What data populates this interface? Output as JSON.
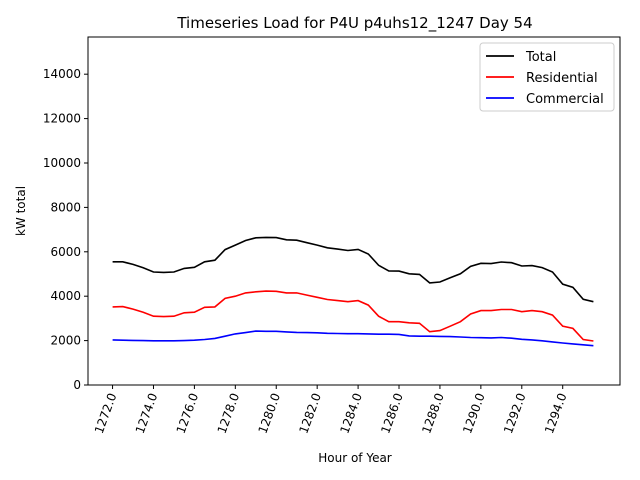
{
  "chart_data": {
    "type": "line",
    "title": "Timeseries Load for P4U p4uhs12_1247  Day 54",
    "xlabel": "Hour of Year",
    "ylabel": "kW total",
    "ylim": [
      0,
      15675
    ],
    "xlim": [
      1270.8,
      1296.8
    ],
    "grid": false,
    "legend_position": "top-right",
    "xticks": [
      "1272.0",
      "1274.0",
      "1276.0",
      "1278.0",
      "1280.0",
      "1282.0",
      "1284.0",
      "1286.0",
      "1288.0",
      "1290.0",
      "1292.0",
      "1294.0"
    ],
    "xtick_values": [
      1272,
      1274,
      1276,
      1278,
      1280,
      1282,
      1284,
      1286,
      1288,
      1290,
      1292,
      1294
    ],
    "yticks": [
      "0",
      "2000",
      "4000",
      "6000",
      "8000",
      "10000",
      "12000",
      "14000"
    ],
    "ytick_values": [
      0,
      2000,
      4000,
      6000,
      8000,
      10000,
      12000,
      14000
    ],
    "x_start": 1272,
    "x_step": 0.5,
    "series": [
      {
        "name": "Total",
        "color": "#000000",
        "values": [
          5550,
          5550,
          5430,
          5280,
          5090,
          5070,
          5090,
          5250,
          5300,
          5550,
          5620,
          6100,
          6300,
          6510,
          6630,
          6650,
          6640,
          6540,
          6520,
          6410,
          6300,
          6180,
          6120,
          6060,
          6110,
          5900,
          5390,
          5140,
          5130,
          5010,
          4980,
          4600,
          4640,
          4830,
          5010,
          5340,
          5480,
          5470,
          5540,
          5510,
          5360,
          5380,
          5290,
          5090,
          4540,
          4400,
          3860,
          3750
        ]
      },
      {
        "name": "Residential",
        "color": "#ff0000",
        "values": [
          3520,
          3530,
          3420,
          3280,
          3100,
          3080,
          3100,
          3250,
          3280,
          3500,
          3520,
          3900,
          4000,
          4150,
          4200,
          4230,
          4220,
          4150,
          4150,
          4050,
          3950,
          3850,
          3800,
          3750,
          3800,
          3600,
          3100,
          2850,
          2850,
          2800,
          2780,
          2400,
          2450,
          2650,
          2850,
          3200,
          3350,
          3350,
          3400,
          3400,
          3300,
          3350,
          3300,
          3150,
          2650,
          2550,
          2050,
          1980
        ]
      },
      {
        "name": "Commercial",
        "color": "#0000ff",
        "values": [
          2030,
          2020,
          2010,
          2000,
          1990,
          1990,
          1990,
          2000,
          2020,
          2050,
          2100,
          2200,
          2300,
          2360,
          2430,
          2420,
          2420,
          2390,
          2370,
          2360,
          2350,
          2330,
          2320,
          2310,
          2310,
          2300,
          2290,
          2290,
          2280,
          2210,
          2200,
          2200,
          2190,
          2180,
          2160,
          2140,
          2130,
          2120,
          2140,
          2110,
          2060,
          2030,
          1990,
          1940,
          1890,
          1850,
          1810,
          1770
        ]
      }
    ]
  }
}
